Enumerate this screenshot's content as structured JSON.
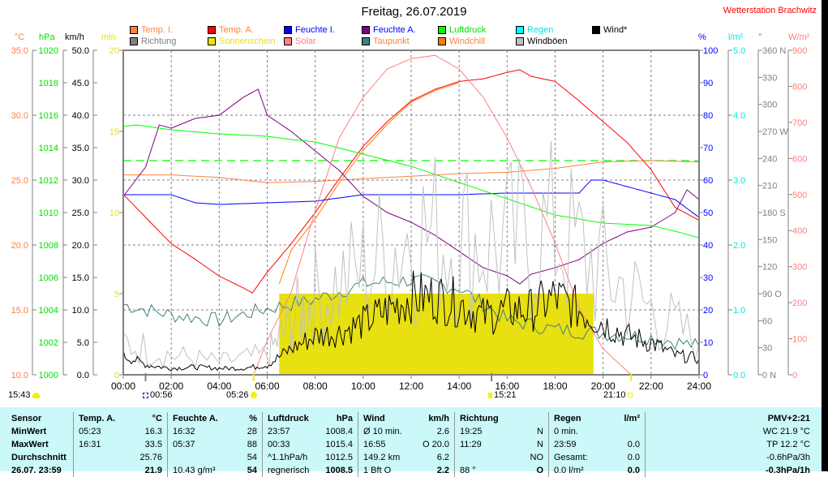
{
  "title": "Freitag, 26.07.2019",
  "station": "Wetterstation Brachwitz",
  "legend": [
    {
      "label": "Temp. I.",
      "swatch": "#ff8040",
      "text": "#ff8040"
    },
    {
      "label": "Richtung",
      "swatch": "#808080",
      "text": "#808080"
    },
    {
      "label": "Temp. A.",
      "swatch": "#ff0000",
      "text": "#ff8040"
    },
    {
      "label": "Sonnenschein",
      "swatch": "#e8e010",
      "text": "#e8e010"
    },
    {
      "label": "Feuchte I.",
      "swatch": "#0000ff",
      "text": "#0000ff"
    },
    {
      "label": "Solar",
      "swatch": "#ff8080",
      "text": "#ff8080"
    },
    {
      "label": "Feuchte A.",
      "swatch": "#800080",
      "text": "#0000ff"
    },
    {
      "label": "Taupunkt",
      "swatch": "#408080",
      "text": "#ff8040"
    },
    {
      "label": "Luftdruck",
      "swatch": "#00ff00",
      "text": "#00e000"
    },
    {
      "label": "Windchill",
      "swatch": "#ff8000",
      "text": "#ff8040"
    },
    {
      "label": "Regen",
      "swatch": "#00ffff",
      "text": "#00e8e8"
    },
    {
      "label": "Windböen",
      "swatch": "#c0c0c0",
      "text": "#000000"
    },
    {
      "label": "Wind*",
      "swatch": "#000000",
      "text": "#000000"
    }
  ],
  "axis_units": {
    "temp": "°C",
    "pressure": "hPa",
    "wind": "km/h",
    "sun": "min",
    "humidity": "%",
    "rain": "l/m²",
    "direction": "°",
    "solar": "W/m²"
  },
  "events": {
    "cloud": "15:43",
    "moonrise": "00:56",
    "sunrise": "05:26",
    "moonset": "15:21",
    "sunset": "21:10"
  },
  "chart_data": {
    "type": "line",
    "title": "Freitag, 26.07.2019",
    "x_ticks": [
      "00:00",
      "02:00",
      "04:00",
      "06:00",
      "08:00",
      "10:00",
      "12:00",
      "14:00",
      "16:00",
      "18:00",
      "20:00",
      "22:00",
      "24:00"
    ],
    "axes": {
      "temp": {
        "ticks": [
          "35.0",
          "30.0",
          "25.0",
          "20.0",
          "15.0",
          "10.0"
        ],
        "range": [
          10,
          35
        ]
      },
      "pressure": {
        "ticks": [
          "1020",
          "1018",
          "1016",
          "1014",
          "1012",
          "1010",
          "1008",
          "1006",
          "1004",
          "1002",
          "1000"
        ],
        "range": [
          1000,
          1020
        ]
      },
      "wind": {
        "ticks": [
          "50.0",
          "45.0",
          "40.0",
          "35.0",
          "30.0",
          "25.0",
          "20.0",
          "15.0",
          "10.0",
          "5.0",
          "0.0"
        ],
        "range": [
          0,
          50
        ]
      },
      "sun": {
        "ticks": [
          "20",
          "15",
          "10",
          "5",
          "0"
        ],
        "range": [
          0,
          20
        ]
      },
      "humidity": {
        "ticks": [
          "100",
          "90",
          "80",
          "70",
          "60",
          "50",
          "40",
          "30",
          "20",
          "10",
          "0"
        ],
        "range": [
          0,
          100
        ]
      },
      "rain": {
        "ticks": [
          "5.0",
          "4.0",
          "3.0",
          "2.0",
          "1.0",
          "0.0"
        ],
        "range": [
          0,
          5
        ]
      },
      "direction": {
        "ticks": [
          "360 N",
          "330",
          "300",
          "270 W",
          "240",
          "210",
          "180 S",
          "150",
          "120",
          "90  O",
          "60",
          "30",
          "0   N"
        ],
        "range": [
          0,
          360
        ]
      },
      "solar": {
        "ticks": [
          "900",
          "800",
          "700",
          "600",
          "500",
          "400",
          "300",
          "200",
          "100",
          "0"
        ],
        "range": [
          0,
          900
        ]
      }
    },
    "series": [
      {
        "name": "Temp. A.",
        "axis": "temp",
        "color": "#ff0000",
        "x": [
          0,
          1,
          2,
          3,
          4,
          5,
          5.38,
          6,
          7,
          8,
          9,
          10,
          11,
          12,
          13,
          14,
          15,
          16,
          16.52,
          17,
          18,
          19,
          20,
          21,
          22,
          23,
          24
        ],
        "y": [
          23.9,
          22,
          20.1,
          18.9,
          17.6,
          16.7,
          16.3,
          17.9,
          20.1,
          22.5,
          25.1,
          27.6,
          29.5,
          31.1,
          32,
          32.6,
          32.8,
          33.3,
          33.5,
          33,
          32.6,
          31.1,
          29.5,
          27.9,
          25.8,
          22.9,
          21.9
        ]
      },
      {
        "name": "Windchill",
        "axis": "temp",
        "color": "#ff8000",
        "x": [
          6.5,
          7,
          8,
          9,
          10,
          11,
          12,
          13,
          14
        ],
        "y": [
          17,
          19.6,
          22,
          24.8,
          27.3,
          29.3,
          31,
          31.9,
          32.5
        ]
      },
      {
        "name": "Temp. I.",
        "axis": "temp",
        "color": "#ff8040",
        "x": [
          0,
          2,
          4,
          6,
          8,
          10,
          12,
          14,
          16,
          18,
          20,
          22,
          24
        ],
        "y": [
          25.4,
          25.4,
          25.2,
          24.8,
          24.9,
          25.1,
          25.3,
          25.5,
          25.6,
          25.9,
          26.4,
          26.5,
          26.4
        ]
      },
      {
        "name": "Feuchte I.",
        "axis": "humidity",
        "color": "#0000ff",
        "x": [
          0,
          2,
          3,
          4,
          6,
          8,
          10,
          12,
          14,
          16,
          19,
          19.5,
          20,
          21,
          22,
          23,
          24
        ],
        "y": [
          55.5,
          55.5,
          53,
          52.5,
          53,
          53.5,
          55.5,
          55.5,
          55.5,
          56,
          56,
          60,
          60,
          58,
          56,
          54,
          48.5
        ]
      },
      {
        "name": "Feuchte A.",
        "axis": "humidity",
        "color": "#800080",
        "x": [
          0,
          0.93,
          1.5,
          2,
          3,
          4,
          5,
          5.62,
          6,
          7,
          8,
          9,
          10,
          11,
          12,
          13,
          14,
          15,
          16,
          16.53,
          17,
          18,
          19,
          20,
          21,
          22,
          23,
          23.5,
          24
        ],
        "y": [
          55,
          64,
          77,
          76,
          79,
          80,
          85.5,
          88,
          80,
          75,
          69,
          63,
          55,
          50,
          47,
          43,
          38,
          33,
          30.5,
          28,
          31,
          33,
          35.5,
          40.5,
          44,
          45.5,
          50,
          57,
          54
        ]
      },
      {
        "name": "Luftdruck",
        "axis": "pressure",
        "color": "#00ff00",
        "x": [
          0,
          0.55,
          2,
          4,
          6,
          7,
          8,
          10,
          12,
          14,
          16,
          18,
          20,
          22,
          23,
          24
        ],
        "y": [
          1015.3,
          1015.4,
          1015.1,
          1014.85,
          1014.7,
          1014.5,
          1014.35,
          1013.6,
          1012.85,
          1011.85,
          1010.85,
          1009.85,
          1009.35,
          1009.2,
          1008.85,
          1008.45
        ]
      },
      {
        "name": "Solar",
        "axis": "solar",
        "color": "#ff8080",
        "x": [
          5.43,
          6,
          7,
          8,
          9,
          10,
          11,
          12,
          13,
          14,
          15,
          16,
          17,
          18,
          19,
          20,
          21.17
        ],
        "y": [
          0,
          95,
          230,
          455,
          657,
          770,
          848,
          877,
          886,
          848,
          770,
          657,
          522,
          365,
          185,
          72,
          0
        ]
      },
      {
        "name": "Taupunkt",
        "axis": "temp",
        "color": "#408080",
        "x": [
          0,
          2,
          4,
          6,
          8,
          10,
          12,
          14,
          16,
          18,
          20,
          22,
          24
        ],
        "y": [
          15.4,
          14.6,
          14.2,
          15.1,
          15.8,
          17,
          17.3,
          16.7,
          14.2,
          13.5,
          13.2,
          12.9,
          12.2
        ]
      },
      {
        "name": "Windböen",
        "axis": "wind",
        "color": "#c0c0c0",
        "x": [
          0,
          2,
          4,
          6,
          7,
          8,
          10,
          12,
          14,
          16,
          18,
          20,
          22,
          24
        ],
        "y": [
          5,
          3,
          2,
          3,
          8,
          12,
          16,
          22,
          21,
          20,
          22,
          16,
          10,
          5
        ]
      },
      {
        "name": "Wind*",
        "axis": "wind",
        "color": "#000000",
        "x": [
          0,
          1,
          2,
          3,
          4,
          5,
          6,
          7,
          8,
          9,
          10,
          11,
          12,
          13,
          14,
          15,
          16,
          17,
          18,
          19,
          20,
          21,
          22,
          23,
          24
        ],
        "y": [
          3,
          1.5,
          1,
          1.2,
          1,
          1,
          1.5,
          4,
          6,
          6.5,
          8,
          10,
          12,
          12,
          11,
          9,
          10,
          10,
          12,
          10,
          8,
          6,
          5,
          3,
          2.5
        ]
      }
    ],
    "reference": {
      "name": "Luftdruck Mittel",
      "axis": "pressure",
      "value": 1013.2,
      "color": "#00ff00"
    },
    "sunshine": {
      "axis": "sun",
      "start": 6.5,
      "end": 19.6,
      "value": 5,
      "color": "#e8e010"
    }
  },
  "footer": {
    "columns": [
      {
        "rows": [
          [
            "Sensor",
            ""
          ],
          [
            "MinWert",
            ""
          ],
          [
            "MaxWert",
            ""
          ],
          [
            "Durchschnitt",
            ""
          ],
          [
            "26.07. 23:59",
            ""
          ]
        ]
      },
      {
        "rows": [
          [
            "Temp. A.",
            "°C"
          ],
          [
            "05:23",
            "16.3"
          ],
          [
            "16:31",
            "33.5"
          ],
          [
            "",
            "25.76"
          ],
          [
            "",
            "21.9"
          ]
        ]
      },
      {
        "rows": [
          [
            "Feuchte A.",
            "%"
          ],
          [
            "16:32",
            "28"
          ],
          [
            "05:37",
            "88"
          ],
          [
            "",
            "54"
          ],
          [
            "10.43 g/m³",
            "54"
          ]
        ]
      },
      {
        "rows": [
          [
            "Luftdruck",
            "hPa"
          ],
          [
            "23:57",
            "1008.4"
          ],
          [
            "00:33",
            "1015.4"
          ],
          [
            "^1.1hPa/h",
            "1012.5"
          ],
          [
            "regnerisch",
            "1008.5"
          ]
        ]
      },
      {
        "rows": [
          [
            "Wind",
            "km/h"
          ],
          [
            "Ø 10 min.",
            "2.6"
          ],
          [
            "16:55",
            "O 20.0"
          ],
          [
            "149.2 km",
            "6.2"
          ],
          [
            "1 Bft O",
            "2.2"
          ]
        ]
      },
      {
        "rows": [
          [
            "Richtung",
            ""
          ],
          [
            "19:25",
            "N"
          ],
          [
            "11:29",
            "N"
          ],
          [
            "",
            "NO"
          ],
          [
            "88 °",
            "O"
          ]
        ]
      },
      {
        "rows": [
          [
            "Regen",
            "l/m²"
          ],
          [
            "0 min.",
            ""
          ],
          [
            "23:59",
            "0.0"
          ],
          [
            "Gesamt:",
            "0.0"
          ],
          [
            "0.0 l/m²",
            "0.0"
          ]
        ]
      },
      {
        "rows": [
          [
            "",
            "PMV+2:21"
          ],
          [
            "",
            "WC 21.9 °C"
          ],
          [
            "",
            "TP 12.2 °C"
          ],
          [
            "",
            "-0.6hPa/3h"
          ],
          [
            "",
            "-0.3hPa/1h"
          ]
        ]
      }
    ]
  }
}
